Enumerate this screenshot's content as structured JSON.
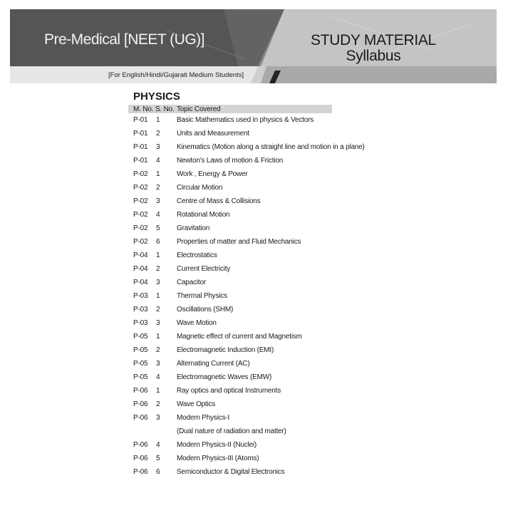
{
  "header": {
    "left_title": "Pre-Medical [NEET (UG)]",
    "right_title": "STUDY MATERIAL",
    "right_subtitle": "Syllabus",
    "medium_note": "[For English/Hindi/Gujarati Medium Students]"
  },
  "section": {
    "title": "PHYSICS",
    "columns": [
      "M. No.",
      "S. No.",
      "Topic Covered"
    ],
    "rows": [
      [
        "P-01",
        "1",
        "Basic Mathematics used in physics & Vectors"
      ],
      [
        "P-01",
        "2",
        "Units and Measurement"
      ],
      [
        "P-01",
        "3",
        "Kinematics (Motion along a straight line and motion in a plane)"
      ],
      [
        "P-01",
        "4",
        "Newton's Laws of motion & Friction"
      ],
      [
        "P-02",
        "1",
        "Work , Energy & Power"
      ],
      [
        "P-02",
        "2",
        "Circular Motion"
      ],
      [
        "P-02",
        "3",
        "Centre of Mass  & Collisions"
      ],
      [
        "P-02",
        "4",
        "Rotational Motion"
      ],
      [
        "P-02",
        "5",
        "Gravitation"
      ],
      [
        "P-02",
        "6",
        "Properties of matter and Fluid Mechanics"
      ],
      [
        "P-04",
        "1",
        "Electrostatics"
      ],
      [
        "P-04",
        "2",
        "Current Electricity"
      ],
      [
        "P-04",
        "3",
        "Capacitor"
      ],
      [
        "P-03",
        "1",
        "Thermal Physics"
      ],
      [
        "P-03",
        "2",
        "Oscillations (SHM)"
      ],
      [
        "P-03",
        "3",
        "Wave Motion"
      ],
      [
        "P-05",
        "1",
        "Magnetic effect of current and Magnetism"
      ],
      [
        "P-05",
        "2",
        "Electromagnetic Induction (EMI)"
      ],
      [
        "P-05",
        "3",
        "Alternating Current (AC)"
      ],
      [
        "P-05",
        "4",
        "Electromagnetic Waves (EMW)"
      ],
      [
        "P-06",
        "1",
        "Ray optics and optical Instruments"
      ],
      [
        "P-06",
        "2",
        "Wave Optics"
      ],
      [
        "P-06",
        "3",
        "Modern Physics-I"
      ],
      [
        "",
        "",
        "(Dual nature of radiation and matter)"
      ],
      [
        "P-06",
        "4",
        "Modern Physics-II (Nuclei)"
      ],
      [
        "P-06",
        "5",
        "Modern Physics-III (Atoms)"
      ],
      [
        "P-06",
        "6",
        "Semiconductor & Digital Electronics"
      ]
    ]
  }
}
